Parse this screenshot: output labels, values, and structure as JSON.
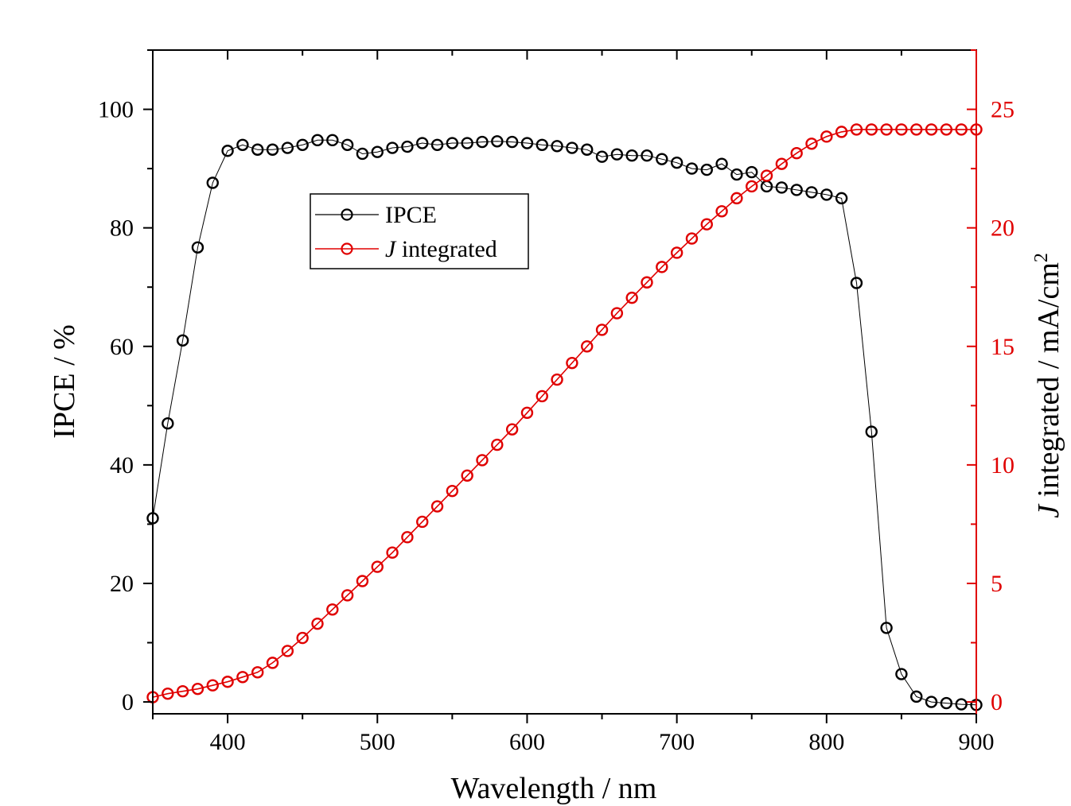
{
  "chart_data": {
    "type": "line",
    "xlabel": "Wavelength / nm",
    "ylabel": "IPCE / %",
    "y2label_italic": "J",
    "y2label_rest": " integrated / mA/cm",
    "y2label_sup": "2",
    "xlim": [
      350,
      900
    ],
    "ylim": [
      -2,
      110
    ],
    "y2lim": [
      -0.5,
      27.5
    ],
    "x_ticks": [
      400,
      500,
      600,
      700,
      800,
      900
    ],
    "y_ticks": [
      0,
      20,
      40,
      60,
      80,
      100
    ],
    "y2_ticks": [
      0,
      5,
      10,
      15,
      20,
      25
    ],
    "legend": [
      {
        "label": "IPCE",
        "italic": ""
      },
      {
        "label": " integrated",
        "italic": "J"
      }
    ],
    "colors": {
      "ipce": "#000000",
      "j": "#e00000"
    },
    "x": [
      350,
      360,
      370,
      380,
      390,
      400,
      410,
      420,
      430,
      440,
      450,
      460,
      470,
      480,
      490,
      500,
      510,
      520,
      530,
      540,
      550,
      560,
      570,
      580,
      590,
      600,
      610,
      620,
      630,
      640,
      650,
      660,
      670,
      680,
      690,
      700,
      710,
      720,
      730,
      740,
      750,
      760,
      770,
      780,
      790,
      800,
      810,
      820,
      830,
      840,
      850,
      860,
      870,
      880,
      890,
      900
    ],
    "series": [
      {
        "name": "IPCE",
        "axis": "left",
        "values": [
          31,
          47,
          61,
          76.7,
          87.6,
          93,
          94,
          93.2,
          93.2,
          93.5,
          94,
          94.8,
          94.8,
          94,
          92.5,
          92.8,
          93.5,
          93.7,
          94.3,
          94,
          94.3,
          94.3,
          94.5,
          94.6,
          94.5,
          94.3,
          94,
          93.8,
          93.5,
          93.2,
          92,
          92.4,
          92.2,
          92.2,
          91.6,
          91,
          90,
          89.8,
          90.8,
          89,
          89.4,
          87,
          86.8,
          86.4,
          86,
          85.6,
          85,
          70.7,
          45.6,
          12.5,
          4.7,
          0.9,
          0,
          -0.2,
          -0.4,
          -0.5
        ]
      },
      {
        "name": "J integrated",
        "axis": "right",
        "values": [
          0.2,
          0.35,
          0.45,
          0.55,
          0.7,
          0.85,
          1.05,
          1.25,
          1.65,
          2.15,
          2.7,
          3.3,
          3.9,
          4.5,
          5.1,
          5.7,
          6.3,
          6.95,
          7.6,
          8.25,
          8.9,
          9.55,
          10.2,
          10.85,
          11.5,
          12.2,
          12.9,
          13.6,
          14.3,
          15,
          15.7,
          16.4,
          17.05,
          17.7,
          18.35,
          18.95,
          19.55,
          20.15,
          20.7,
          21.25,
          21.75,
          22.2,
          22.7,
          23.15,
          23.55,
          23.85,
          24.05,
          24.15,
          24.15,
          24.15,
          24.15,
          24.15,
          24.15,
          24.15,
          24.15,
          24.15
        ]
      }
    ]
  }
}
